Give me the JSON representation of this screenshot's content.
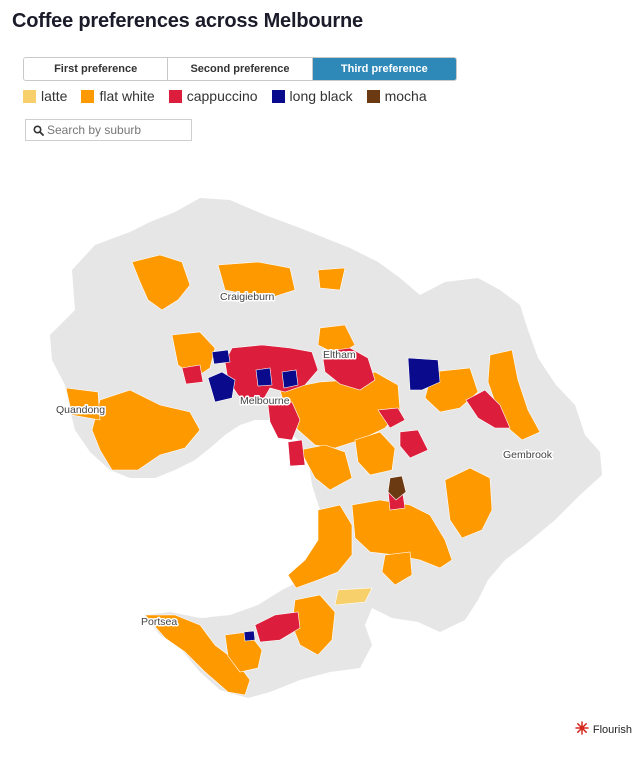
{
  "title": "Coffee preferences across Melbourne",
  "tabs": [
    {
      "label": "First preference",
      "active": false
    },
    {
      "label": "Second preference",
      "active": false
    },
    {
      "label": "Third preference",
      "active": true
    }
  ],
  "legend": [
    {
      "label": "latte",
      "color": "#f7cf6b"
    },
    {
      "label": "flat white",
      "color": "#ff9900"
    },
    {
      "label": "cappuccino",
      "color": "#dc1e3c"
    },
    {
      "label": "long black",
      "color": "#0a0a8c"
    },
    {
      "label": "mocha",
      "color": "#6b3a12"
    }
  ],
  "search": {
    "placeholder": "Search by suburb"
  },
  "map": {
    "base_color": "#e6e6e6",
    "place_labels": [
      "Craigieburn",
      "Eltham",
      "Quandong",
      "Melbourne",
      "Gembrook",
      "Portsea"
    ]
  },
  "footer": {
    "credit": "Flourish"
  }
}
